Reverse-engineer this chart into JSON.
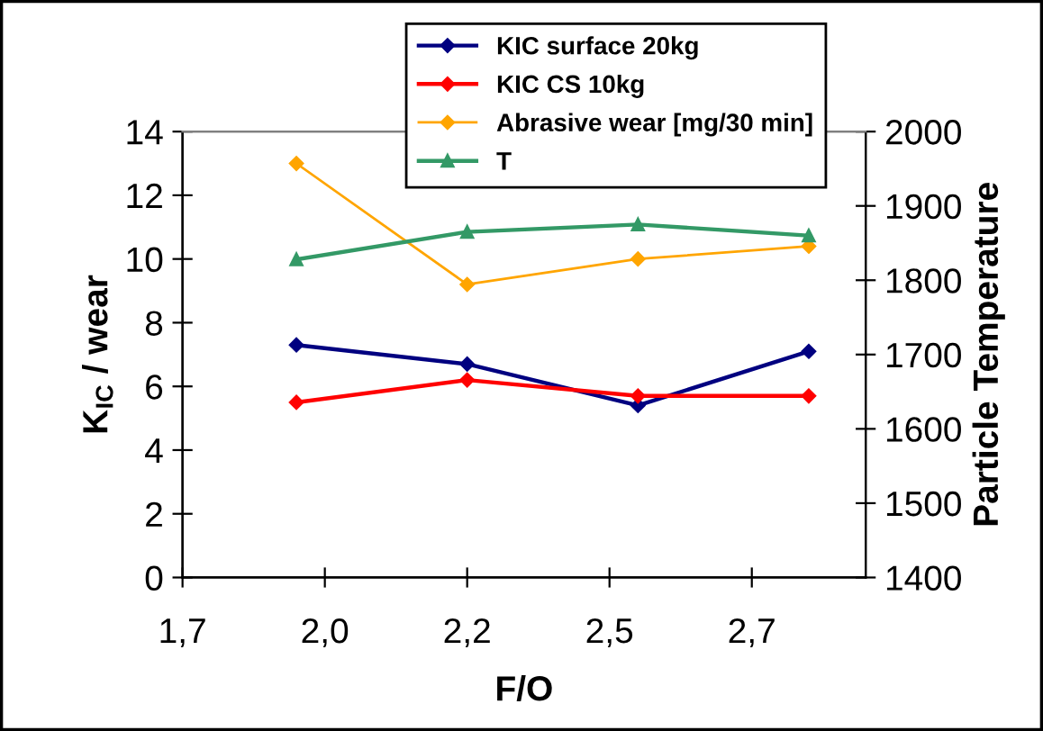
{
  "chart_data": {
    "type": "line",
    "xlabel": "F/O",
    "ylabel": "K$_{IC}$ / wear",
    "y2label": "Particle Temperature",
    "x": [
      1.9,
      2.2,
      2.5,
      2.8
    ],
    "xlim": [
      1.7,
      2.9
    ],
    "xticks": [
      {
        "value": 1.7,
        "label": "1,7"
      },
      {
        "value": 1.95,
        "label": "2,0"
      },
      {
        "value": 2.2,
        "label": "2,2"
      },
      {
        "value": 2.45,
        "label": "2,5"
      },
      {
        "value": 2.7,
        "label": "2,7"
      }
    ],
    "ylim": [
      0,
      14
    ],
    "yticks": [
      0,
      2,
      4,
      6,
      8,
      10,
      12,
      14
    ],
    "y2lim": [
      1400,
      2000
    ],
    "y2ticks": [
      1400,
      1500,
      1600,
      1700,
      1800,
      1900,
      2000
    ],
    "grid": false,
    "legend": "top right",
    "series": [
      {
        "name": "KIC surface 20kg",
        "color": "#000080",
        "marker": "diamond",
        "values": [
          7.3,
          6.7,
          5.4,
          7.1
        ]
      },
      {
        "name": "KIC CS 10kg",
        "color": "#ff0000",
        "marker": "diamond",
        "values": [
          5.5,
          6.2,
          5.7,
          5.7
        ]
      },
      {
        "name": "Abrasive wear [mg/30 min]",
        "color": "#ffa500",
        "marker": "diamond",
        "values": [
          13.0,
          9.2,
          10.0,
          10.4
        ]
      },
      {
        "name": "T",
        "color": "#339966",
        "marker": "triangle",
        "axis": "y2",
        "values": [
          1828,
          1865,
          1875,
          1860
        ]
      }
    ]
  }
}
